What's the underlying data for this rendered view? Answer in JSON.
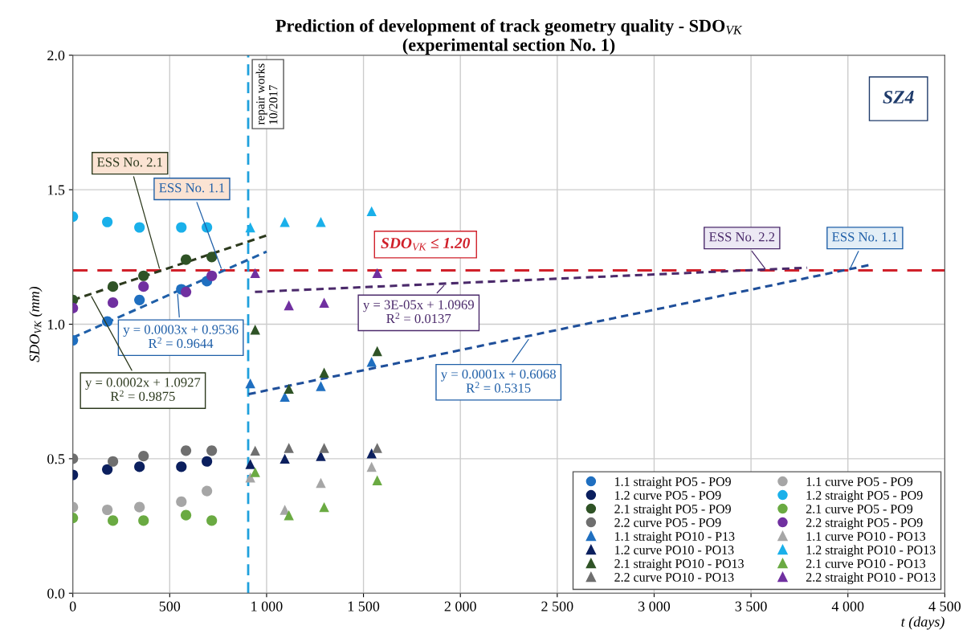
{
  "chart_data": {
    "type": "scatter",
    "title": "Prediction of development of track geometry quality - SDO$_{VK}$\n(experimental section No. 1)",
    "xlabel": "t (days)",
    "ylabel": "SDO$_{VK}$ (mm)",
    "xlim": [
      0,
      4500
    ],
    "ylim": [
      0,
      2.0
    ],
    "xticks": [
      0,
      500,
      {
        "value": 1000,
        "label": "1 000"
      },
      {
        "value": 1500,
        "label": "1 500"
      },
      {
        "value": 2000,
        "label": "2 000"
      },
      {
        "value": 2500,
        "label": "2 500"
      },
      {
        "value": 3000,
        "label": "3 000"
      },
      {
        "value": 3500,
        "label": "3 500"
      },
      {
        "value": 4000,
        "label": "4 000"
      },
      {
        "value": 4500,
        "label": "4 500"
      }
    ],
    "yticks": [
      {
        "value": 0,
        "label": "0.0"
      },
      0.5,
      {
        "value": 1,
        "label": "1.0"
      },
      1.5,
      {
        "value": 2,
        "label": "2.0"
      }
    ],
    "grid": true,
    "legend": "bottom right",
    "series": [
      {
        "name": "1.1 straight PO5 - PO9",
        "color": "#1f6fc0",
        "marker": "circle",
        "x": [
          0,
          178,
          344,
          560,
          692
        ],
        "values": [
          0.94,
          1.01,
          1.09,
          1.13,
          1.16
        ]
      },
      {
        "name": "1.2 curve PO5 - PO9",
        "color": "#0b1f5e",
        "marker": "circle",
        "x": [
          0,
          178,
          344,
          560,
          692
        ],
        "values": [
          0.44,
          0.46,
          0.47,
          0.47,
          0.49
        ]
      },
      {
        "name": "2.1 straight PO5 - PO9",
        "color": "#2f5326",
        "marker": "circle",
        "x": [
          0,
          207,
          365,
          584,
          717
        ],
        "values": [
          1.09,
          1.14,
          1.18,
          1.24,
          1.25
        ]
      },
      {
        "name": "2.2 curve PO5 - PO9",
        "color": "#6f6f6f",
        "marker": "circle",
        "x": [
          0,
          207,
          365,
          584,
          717
        ],
        "values": [
          0.5,
          0.49,
          0.51,
          0.53,
          0.53
        ]
      },
      {
        "name": "1.1 straight PO10 - P13",
        "color": "#1f6fc0",
        "marker": "triangle",
        "x": [
          916,
          1094,
          1280,
          1542
        ],
        "values": [
          0.78,
          0.73,
          0.77,
          0.86
        ]
      },
      {
        "name": "1.2 curve PO10 - PO13",
        "color": "#0b1f5e",
        "marker": "triangle",
        "x": [
          916,
          1094,
          1280,
          1542
        ],
        "values": [
          0.48,
          0.5,
          0.51,
          0.52
        ]
      },
      {
        "name": "2.1 straight PO10 - PO13",
        "color": "#2f5326",
        "marker": "triangle",
        "x": [
          941,
          1115,
          1297,
          1571
        ],
        "values": [
          0.98,
          0.76,
          0.82,
          0.9
        ]
      },
      {
        "name": "2.2 curve PO10 - PO13",
        "color": "#6f6f6f",
        "marker": "triangle",
        "x": [
          941,
          1115,
          1297,
          1571
        ],
        "values": [
          0.53,
          0.54,
          0.54,
          0.54
        ]
      },
      {
        "name": "1.1 curve PO5 - PO9",
        "color": "#a6a6a6",
        "marker": "circle",
        "x": [
          0,
          178,
          344,
          560,
          692
        ],
        "values": [
          0.32,
          0.31,
          0.32,
          0.34,
          0.38
        ]
      },
      {
        "name": "1.2 straight PO5 - PO9",
        "color": "#1ab0ea",
        "marker": "circle",
        "x": [
          0,
          178,
          344,
          560,
          692
        ],
        "values": [
          1.4,
          1.38,
          1.36,
          1.36,
          1.36
        ]
      },
      {
        "name": "2.1 curve PO5 - PO9",
        "color": "#6aaa42",
        "marker": "circle",
        "x": [
          0,
          207,
          365,
          584,
          717
        ],
        "values": [
          0.28,
          0.27,
          0.27,
          0.29,
          0.27
        ]
      },
      {
        "name": "2.2 straight PO5 - PO9",
        "color": "#7030a0",
        "marker": "circle",
        "x": [
          0,
          207,
          365,
          584,
          717
        ],
        "values": [
          1.06,
          1.08,
          1.14,
          1.12,
          1.18
        ]
      },
      {
        "name": "1.1 curve PO10 - PO13",
        "color": "#a6a6a6",
        "marker": "triangle",
        "x": [
          916,
          1094,
          1280,
          1542
        ],
        "values": [
          0.43,
          0.31,
          0.41,
          0.47
        ]
      },
      {
        "name": "1.2 straight PO10 - PO13",
        "color": "#1ab0ea",
        "marker": "triangle",
        "x": [
          916,
          1094,
          1280,
          1542
        ],
        "values": [
          1.36,
          1.38,
          1.38,
          1.42
        ]
      },
      {
        "name": "2.1 curve PO10 - PO13",
        "color": "#6aaa42",
        "marker": "triangle",
        "x": [
          941,
          1115,
          1297,
          1571
        ],
        "values": [
          0.45,
          0.29,
          0.32,
          0.42
        ]
      },
      {
        "name": "2.2 straight PO10 - PO13",
        "color": "#7030a0",
        "marker": "triangle",
        "x": [
          941,
          1115,
          1297,
          1571
        ],
        "values": [
          1.19,
          1.07,
          1.08,
          1.19
        ]
      },
      {
        "type": "line",
        "color": "#2d3a1e",
        "line_style": "dashed",
        "marker": "none",
        "x": [
          0,
          1000
        ],
        "values": [
          1.09,
          1.33
        ]
      },
      {
        "type": "line",
        "color": "#1f5fa8",
        "line_style": "dashed",
        "marker": "none",
        "x": [
          0,
          1000
        ],
        "values": [
          0.95,
          1.27
        ]
      },
      {
        "type": "line",
        "color": "#4b2a6b",
        "line_style": "dashed",
        "marker": "none",
        "x": [
          940,
          3790
        ],
        "values": [
          1.12,
          1.21
        ]
      },
      {
        "type": "line",
        "color": "#1f4f9a",
        "line_style": "dashed",
        "marker": "none",
        "x": [
          907,
          4110
        ],
        "values": [
          0.74,
          1.22
        ]
      }
    ],
    "ref_lines": [
      {
        "axis": "y",
        "value": 1.2,
        "label": "SDO$_{VK}$ ≤ 1.20",
        "color": "#d0202a",
        "line_style": "dashed"
      },
      {
        "axis": "x",
        "value": 905,
        "label": "repair works\n10/2017",
        "color": "#1ea0dc",
        "line_style": "dashed"
      }
    ],
    "annotations": [
      "SZ4",
      {
        "text": "ESS No. 2.1",
        "x": 450,
        "y": 1.2
      },
      {
        "text": "ESS No. 1.1",
        "x": 770,
        "y": 1.2
      },
      {
        "text": "ESS No. 2.2",
        "x": 3580,
        "y": 1.2
      },
      {
        "text": "ESS No. 1.1",
        "x": 4007,
        "y": 1.2
      },
      {
        "text": "y = 0.0003x + 0.9536\nR$^{2}$ = 0.9644",
        "x": 540,
        "y": 1.12
      },
      {
        "text": "y = 0.0002x + 1.0927\nR$^{2}$ = 0.9875",
        "x": 91,
        "y": 1.11
      },
      {
        "text": "y = 3E-05x + 1.0969\nR$^{2}$ = 0.0137",
        "x": 1923,
        "y": 1.15
      },
      {
        "text": "y = 0.0001x + 0.6068\nR$^{2}$ = 0.5315",
        "x": 2358,
        "y": 0.95
      }
    ]
  }
}
